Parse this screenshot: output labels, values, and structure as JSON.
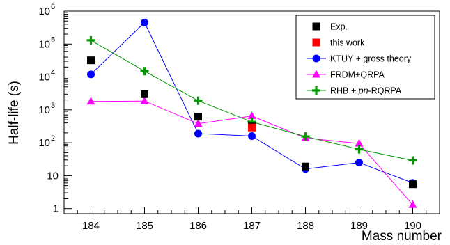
{
  "chart_data": {
    "type": "scatter",
    "xlabel": "Mass number",
    "ylabel": "Half-life (s)",
    "xlim": [
      183.5,
      190.5
    ],
    "ylim": [
      0.7,
      1000000
    ],
    "y_scale": "log",
    "x_ticks": [
      184,
      185,
      186,
      187,
      188,
      189,
      190
    ],
    "y_ticks": [
      {
        "value": 1,
        "label": "1",
        "sup": ""
      },
      {
        "value": 10,
        "label": "10",
        "sup": ""
      },
      {
        "value": 100,
        "label": "10",
        "sup": "2"
      },
      {
        "value": 1000,
        "label": "10",
        "sup": "3"
      },
      {
        "value": 10000,
        "label": "10",
        "sup": "4"
      },
      {
        "value": 100000,
        "label": "10",
        "sup": "5"
      },
      {
        "value": 1000000,
        "label": "10",
        "sup": "6"
      }
    ],
    "legend_position": "top-right",
    "series": [
      {
        "name": "Exp.",
        "color": "#000000",
        "marker": "square",
        "line": false,
        "x": [
          184,
          185,
          186,
          187,
          188,
          190
        ],
        "y": [
          32000,
          3000,
          620,
          310,
          19,
          5.5
        ]
      },
      {
        "name": "this work",
        "color": "#ff0000",
        "marker": "square",
        "line": false,
        "x": [
          187
        ],
        "y": [
          290
        ]
      },
      {
        "name": "KTUY + gross theory",
        "color": "#0000ff",
        "marker": "circle",
        "line": true,
        "x": [
          184,
          185,
          186,
          187,
          188,
          189,
          190
        ],
        "y": [
          12000,
          450000,
          190,
          160,
          16,
          25,
          6
        ]
      },
      {
        "name": "FRDM+QRPA",
        "color": "#ff00ff",
        "marker": "triangle",
        "line": true,
        "x": [
          184,
          185,
          186,
          187,
          188,
          189,
          190
        ],
        "y": [
          1800,
          1850,
          380,
          650,
          140,
          95,
          1.3
        ]
      },
      {
        "name": "RHB + ",
        "name_italic": "pn",
        "name_suffix": "-RQRPA",
        "color": "#009900",
        "marker": "plus",
        "line": true,
        "x": [
          184,
          185,
          186,
          187,
          188,
          189,
          190
        ],
        "y": [
          130000,
          15000,
          1900,
          430,
          155,
          63,
          29
        ]
      }
    ]
  }
}
